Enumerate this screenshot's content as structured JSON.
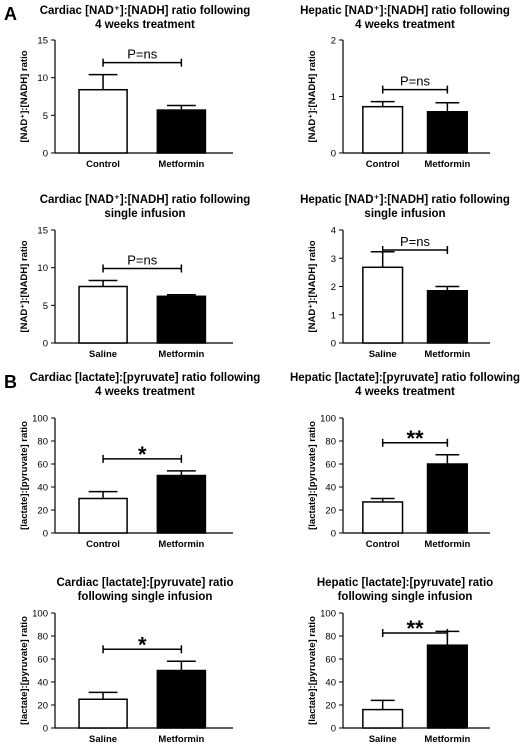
{
  "panels": [
    {
      "label": "A"
    },
    {
      "label": "B"
    }
  ],
  "chart_data": [
    {
      "type": "bar",
      "panel": "A",
      "title_line1": "Cardiac [NAD⁺]:[NADH] ratio following",
      "title_line2": "4 weeks treatment",
      "ylabel": "[NAD⁺]:[NADH] ratio",
      "categories": [
        "Control",
        "Metformin"
      ],
      "values": [
        8.4,
        5.7
      ],
      "errors": [
        2.0,
        0.6
      ],
      "fills": [
        "#ffffff",
        "#000000"
      ],
      "ylim": [
        0,
        15
      ],
      "yticks": [
        0,
        5,
        10,
        15
      ],
      "annotation": "P=ns"
    },
    {
      "type": "bar",
      "panel": "A",
      "title_line1": "Hepatic [NAD⁺]:[NADH] ratio following",
      "title_line2": "4 weeks treatment",
      "ylabel": "[NAD⁺]:[NADH] ratio",
      "categories": [
        "Control",
        "Metformin"
      ],
      "values": [
        0.82,
        0.73
      ],
      "errors": [
        0.09,
        0.16
      ],
      "fills": [
        "#ffffff",
        "#000000"
      ],
      "ylim": [
        0,
        2
      ],
      "yticks": [
        0,
        1,
        2
      ],
      "annotation": "P=ns"
    },
    {
      "type": "bar",
      "panel": "A",
      "title_line1": "Cardiac [NAD⁺]:[NADH] ratio following",
      "title_line2": "single infusion",
      "ylabel": "[NAD⁺]:[NADH] ratio",
      "categories": [
        "Saline",
        "Metformin"
      ],
      "values": [
        7.5,
        6.2
      ],
      "errors": [
        0.8,
        0.2
      ],
      "fills": [
        "#ffffff",
        "#000000"
      ],
      "ylim": [
        0,
        15
      ],
      "yticks": [
        0,
        5,
        10,
        15
      ],
      "annotation": "P=ns"
    },
    {
      "type": "bar",
      "panel": "A",
      "title_line1": "Hepatic [NAD⁺]:[NADH] ratio following",
      "title_line2": "single infusion",
      "ylabel": "[NAD⁺]:[NADH] ratio",
      "categories": [
        "Saline",
        "Metformin"
      ],
      "values": [
        2.68,
        1.85
      ],
      "errors": [
        0.55,
        0.15
      ],
      "fills": [
        "#ffffff",
        "#000000"
      ],
      "ylim": [
        0,
        4
      ],
      "yticks": [
        0,
        1,
        2,
        3,
        4
      ],
      "annotation": "P=ns"
    },
    {
      "type": "bar",
      "panel": "B",
      "title_line1": "Cardiac [lactate]:[pyruvate] ratio following",
      "title_line2": "4 weeks treatment",
      "ylabel": "[lactate]:[pyruvate] ratio",
      "categories": [
        "Control",
        "Metformin"
      ],
      "values": [
        30,
        50
      ],
      "errors": [
        6,
        4
      ],
      "fills": [
        "#ffffff",
        "#000000"
      ],
      "ylim": [
        0,
        100
      ],
      "yticks": [
        0,
        20,
        40,
        60,
        80,
        100
      ],
      "annotation": "*"
    },
    {
      "type": "bar",
      "panel": "B",
      "title_line1": "Hepatic [lactate]:[pyruvate] ratio following",
      "title_line2": "4 weeks treatment",
      "ylabel": "[lactate]:[pyruvate] ratio",
      "categories": [
        "Control",
        "Metformin"
      ],
      "values": [
        27,
        60
      ],
      "errors": [
        3,
        8
      ],
      "fills": [
        "#ffffff",
        "#000000"
      ],
      "ylim": [
        0,
        100
      ],
      "yticks": [
        0,
        20,
        40,
        60,
        80,
        100
      ],
      "annotation": "**"
    },
    {
      "type": "bar",
      "panel": "B",
      "title_line1": "Cardiac [lactate]:[pyruvate] ratio",
      "title_line2": "following single infusion",
      "ylabel": "[lactate]:[pyruvate] ratio",
      "categories": [
        "Saline",
        "Metformin"
      ],
      "values": [
        25,
        50
      ],
      "errors": [
        6,
        8
      ],
      "fills": [
        "#ffffff",
        "#000000"
      ],
      "ylim": [
        0,
        100
      ],
      "yticks": [
        0,
        20,
        40,
        60,
        80,
        100
      ],
      "annotation": "*"
    },
    {
      "type": "bar",
      "panel": "B",
      "title_line1": "Hepatic [lactate]:[pyruvate] ratio",
      "title_line2": "following single infusion",
      "ylabel": "[lactate]:[pyruvate] ratio",
      "categories": [
        "Saline",
        "Metformin"
      ],
      "values": [
        16,
        72
      ],
      "errors": [
        8,
        12
      ],
      "fills": [
        "#ffffff",
        "#000000"
      ],
      "ylim": [
        0,
        100
      ],
      "yticks": [
        0,
        20,
        40,
        60,
        80,
        100
      ],
      "annotation": "**"
    }
  ]
}
